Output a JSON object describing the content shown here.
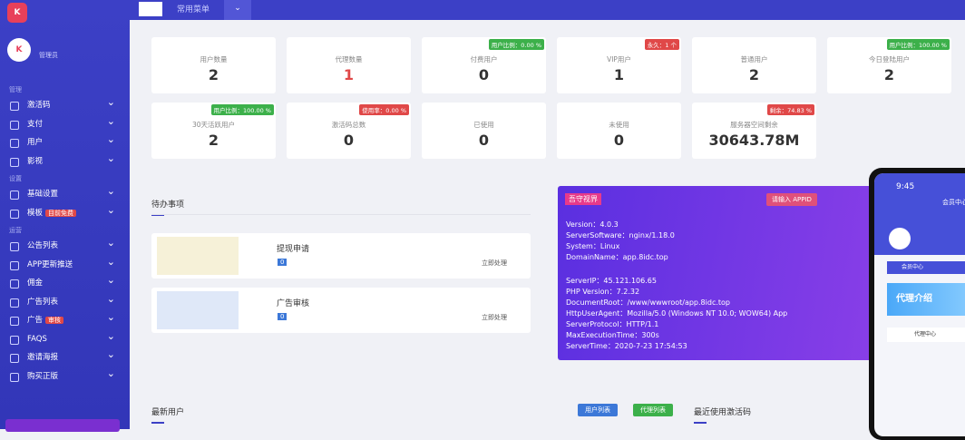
{
  "sidebar": {
    "role": "管理员",
    "sections": [
      {
        "title": "管理",
        "items": [
          {
            "label": "激活码"
          },
          {
            "label": "支付"
          },
          {
            "label": "用户"
          },
          {
            "label": "影视"
          }
        ]
      },
      {
        "title": "设置",
        "items": [
          {
            "label": "基础设置"
          },
          {
            "label": "模板",
            "badge": "目前免费"
          }
        ]
      },
      {
        "title": "运营",
        "items": [
          {
            "label": "公告列表"
          },
          {
            "label": "APP更新推送"
          },
          {
            "label": "佣金"
          },
          {
            "label": "广告列表"
          },
          {
            "label": "广告",
            "badge": "审核"
          },
          {
            "label": "FAQS"
          },
          {
            "label": "邀请海报"
          },
          {
            "label": "购买正版"
          }
        ]
      }
    ]
  },
  "topbar": {
    "tab": "常用菜单"
  },
  "stats": [
    {
      "label": "用户数量",
      "value": 2
    },
    {
      "label": "代理数量",
      "value": 1,
      "value_color": "#e04848"
    },
    {
      "label": "付费用户",
      "value": 0,
      "badge": "用户比例：0.00 %",
      "badge_color": "#3cb04a"
    },
    {
      "label": "VIP用户",
      "value": 1,
      "badge": "永久：1 个",
      "badge_color": "#e04848"
    },
    {
      "label": "普通用户",
      "value": 2
    },
    {
      "label": "今日登陆用户",
      "value": 2,
      "badge": "用户比例：100.00 %",
      "badge_color": "#3cb04a"
    },
    {
      "label": "30天活跃用户",
      "value": 2,
      "badge": "用户比例：100.00 %",
      "badge_color": "#3cb04a"
    },
    {
      "label": "激活码总数",
      "value": 0,
      "badge": "使用率：0.00 %",
      "badge_color": "#e04848"
    },
    {
      "label": "已使用",
      "value": 0
    },
    {
      "label": "未使用",
      "value": 0
    },
    {
      "label": "服务器空间剩余",
      "value": "30643.78M",
      "badge": "剩余：74.83 %",
      "badge_color": "#e04848"
    }
  ],
  "todo": {
    "title": "待办事项",
    "items": [
      {
        "label": "提现申请",
        "count": 0,
        "action": "立即处理"
      },
      {
        "label": "广告审核",
        "count": 0,
        "action": "立即处理"
      }
    ]
  },
  "server": {
    "brand": "吾守视界",
    "button": "请输入 APPID",
    "group1": [
      "Version：4.0.3",
      "ServerSoftware：nginx/1.18.0",
      "System：Linux",
      "DomainName：app.8idc.top"
    ],
    "group2": [
      "ServerIP：45.121.106.65",
      "PHP Version：7.2.32",
      "DocumentRoot：/www/wwwroot/app.8idc.top",
      "HttpUserAgent：Mozilla/5.0 (Windows NT 10.0; WOW64) App",
      "ServerProtocol：HTTP/1.1",
      "MaxExecutionTime：300s",
      "ServerTime：2020-7-23 17:54:53"
    ]
  },
  "phone": {
    "time": "9:45",
    "header": "会员中心",
    "menu1": "会员中心",
    "banner": "代理介绍",
    "menu2": "代理中心"
  },
  "bottom": {
    "latest_users": "最新用户",
    "user_list": "用户列表",
    "agent_list": "代理列表",
    "recent_codes": "最近使用激活码"
  }
}
